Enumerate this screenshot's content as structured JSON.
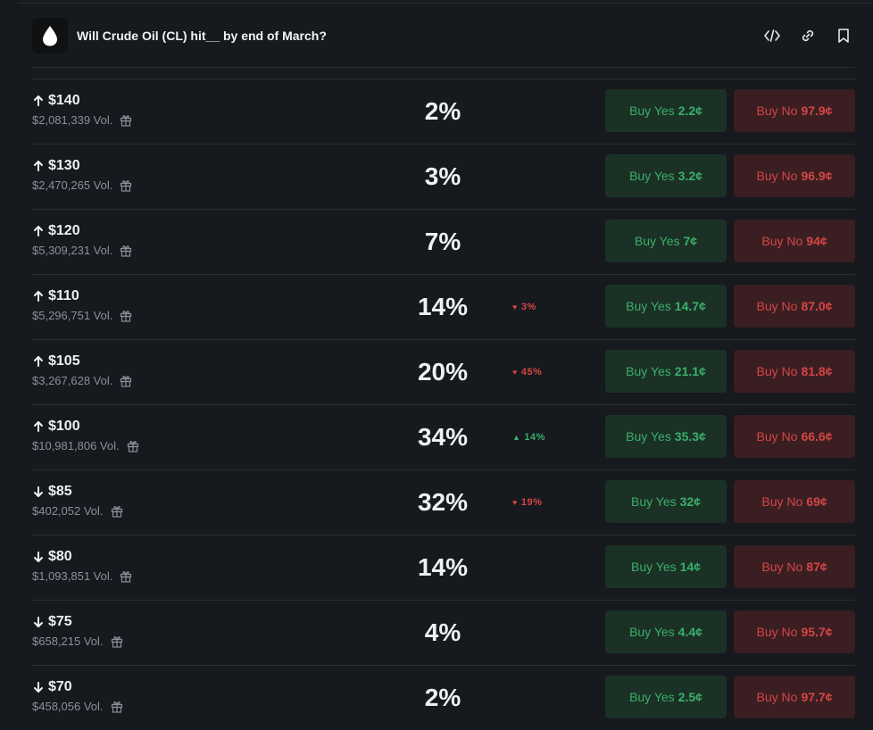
{
  "header": {
    "title": "Will Crude Oil (CL) hit__ by end of March?"
  },
  "colors": {
    "background": "#16191d",
    "yes_bg": "#1b3126",
    "yes_text": "#3aaf6a",
    "no_bg": "#3a1e22",
    "no_text": "#d64545"
  },
  "rows": [
    {
      "direction": "up",
      "strike": "$140",
      "volume": "$2,081,339 Vol.",
      "percent": "2%",
      "change": "",
      "change_dir": "",
      "yes_label": "Buy Yes",
      "yes_price": "2.2¢",
      "no_label": "Buy No",
      "no_price": "97.9¢"
    },
    {
      "direction": "up",
      "strike": "$130",
      "volume": "$2,470,265 Vol.",
      "percent": "3%",
      "change": "",
      "change_dir": "",
      "yes_label": "Buy Yes",
      "yes_price": "3.2¢",
      "no_label": "Buy No",
      "no_price": "96.9¢"
    },
    {
      "direction": "up",
      "strike": "$120",
      "volume": "$5,309,231 Vol.",
      "percent": "7%",
      "change": "",
      "change_dir": "",
      "yes_label": "Buy Yes",
      "yes_price": "7¢",
      "no_label": "Buy No",
      "no_price": "94¢"
    },
    {
      "direction": "up",
      "strike": "$110",
      "volume": "$5,296,751 Vol.",
      "percent": "14%",
      "change": "3%",
      "change_dir": "down",
      "yes_label": "Buy Yes",
      "yes_price": "14.7¢",
      "no_label": "Buy No",
      "no_price": "87.0¢"
    },
    {
      "direction": "up",
      "strike": "$105",
      "volume": "$3,267,628 Vol.",
      "percent": "20%",
      "change": "45%",
      "change_dir": "down",
      "yes_label": "Buy Yes",
      "yes_price": "21.1¢",
      "no_label": "Buy No",
      "no_price": "81.8¢"
    },
    {
      "direction": "up",
      "strike": "$100",
      "volume": "$10,981,806 Vol.",
      "percent": "34%",
      "change": "14%",
      "change_dir": "up",
      "yes_label": "Buy Yes",
      "yes_price": "35.3¢",
      "no_label": "Buy No",
      "no_price": "66.6¢"
    },
    {
      "direction": "down",
      "strike": "$85",
      "volume": "$402,052 Vol.",
      "percent": "32%",
      "change": "19%",
      "change_dir": "down",
      "yes_label": "Buy Yes",
      "yes_price": "32¢",
      "no_label": "Buy No",
      "no_price": "69¢"
    },
    {
      "direction": "down",
      "strike": "$80",
      "volume": "$1,093,851 Vol.",
      "percent": "14%",
      "change": "",
      "change_dir": "",
      "yes_label": "Buy Yes",
      "yes_price": "14¢",
      "no_label": "Buy No",
      "no_price": "87¢"
    },
    {
      "direction": "down",
      "strike": "$75",
      "volume": "$658,215 Vol.",
      "percent": "4%",
      "change": "",
      "change_dir": "",
      "yes_label": "Buy Yes",
      "yes_price": "4.4¢",
      "no_label": "Buy No",
      "no_price": "95.7¢"
    },
    {
      "direction": "down",
      "strike": "$70",
      "volume": "$458,056 Vol.",
      "percent": "2%",
      "change": "",
      "change_dir": "",
      "yes_label": "Buy Yes",
      "yes_price": "2.5¢",
      "no_label": "Buy No",
      "no_price": "97.7¢"
    }
  ]
}
